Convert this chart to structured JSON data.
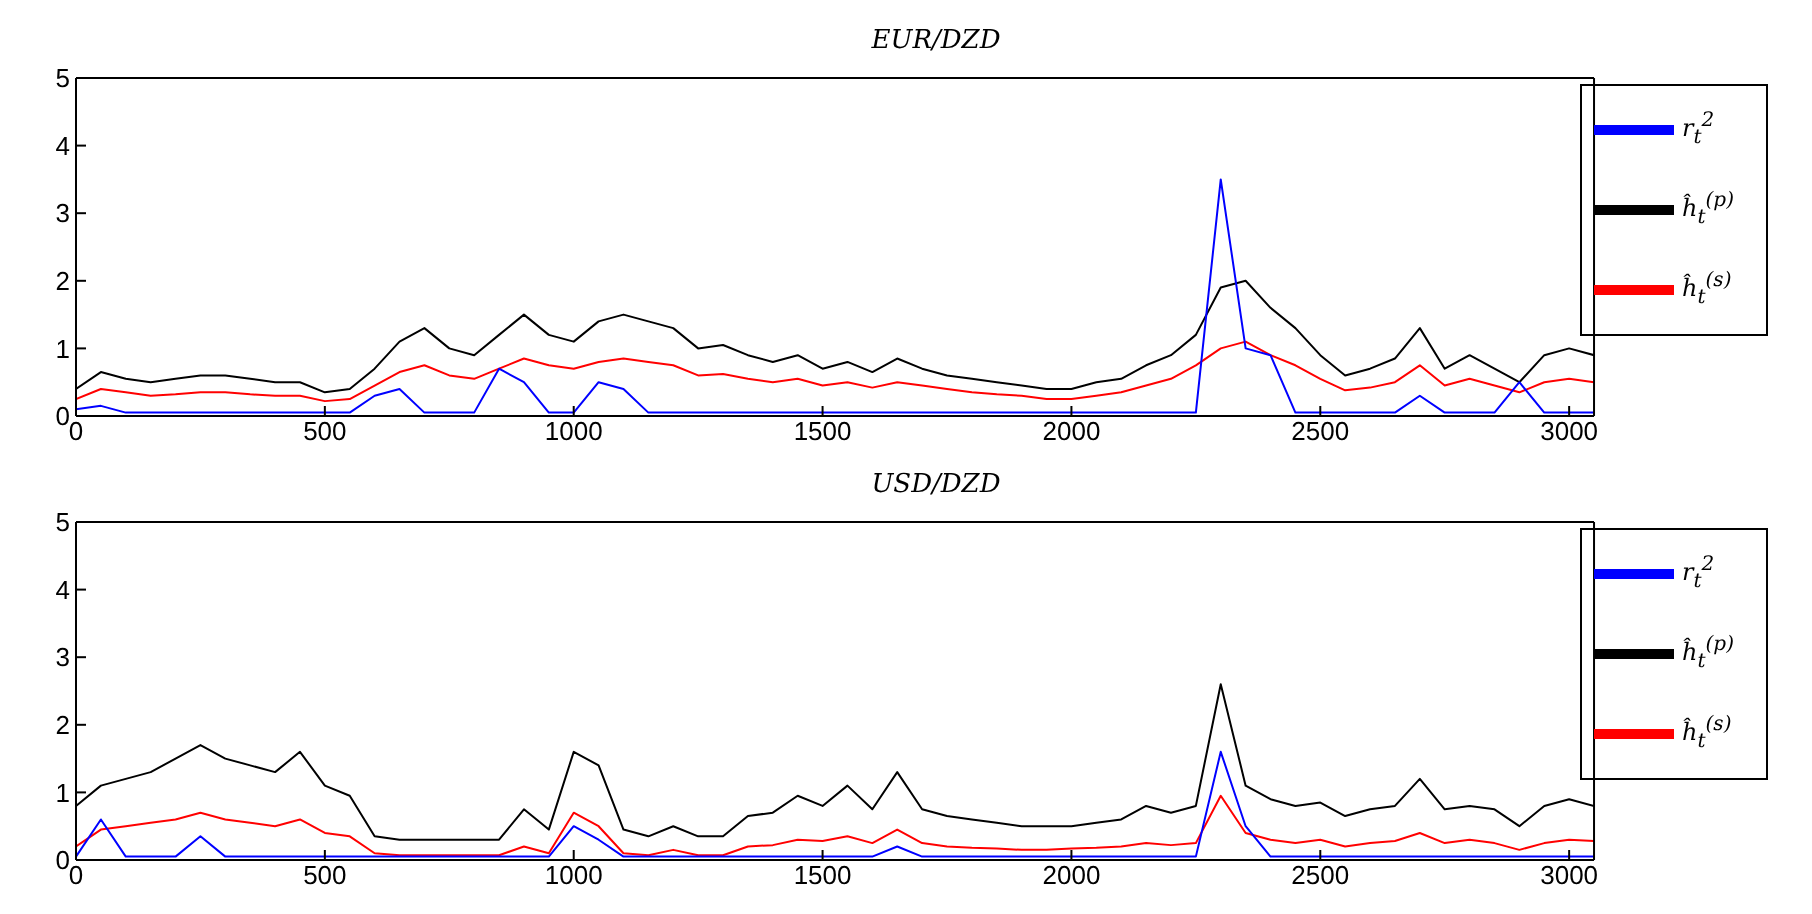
{
  "chart_data": [
    {
      "type": "line",
      "title": "EUR/DZD",
      "xlim": [
        0,
        3050
      ],
      "xticks": [
        0,
        500,
        1000,
        1500,
        2000,
        2500,
        3000
      ],
      "ylim": [
        0,
        5
      ],
      "yticks": [
        0,
        1,
        2,
        3,
        4,
        5
      ],
      "legend": "top right",
      "x": [
        0,
        50,
        100,
        150,
        200,
        250,
        300,
        350,
        400,
        450,
        500,
        550,
        600,
        650,
        700,
        750,
        800,
        850,
        900,
        950,
        1000,
        1050,
        1100,
        1150,
        1200,
        1250,
        1300,
        1350,
        1400,
        1450,
        1500,
        1550,
        1600,
        1650,
        1700,
        1750,
        1800,
        1850,
        1900,
        1950,
        2000,
        2050,
        2100,
        2150,
        2200,
        2250,
        2300,
        2350,
        2400,
        2450,
        2500,
        2550,
        2600,
        2650,
        2700,
        2750,
        2800,
        2850,
        2900,
        2950,
        3000,
        3050
      ],
      "series": [
        {
          "name": "ĥ$_{t}$$^{(p)}$",
          "color": "#000000",
          "values": [
            0.4,
            0.65,
            0.55,
            0.5,
            0.55,
            0.6,
            0.6,
            0.55,
            0.5,
            0.5,
            0.35,
            0.4,
            0.7,
            1.1,
            1.3,
            1.0,
            0.9,
            1.2,
            1.5,
            1.2,
            1.1,
            1.4,
            1.5,
            1.4,
            1.3,
            1.0,
            1.05,
            0.9,
            0.8,
            0.9,
            0.7,
            0.8,
            0.65,
            0.85,
            0.7,
            0.6,
            0.55,
            0.5,
            0.45,
            0.4,
            0.4,
            0.5,
            0.55,
            0.75,
            0.9,
            1.2,
            1.9,
            2.0,
            1.6,
            1.3,
            0.9,
            0.6,
            0.7,
            0.85,
            1.3,
            0.7,
            0.9,
            0.7,
            0.5,
            0.9,
            1.0,
            0.9
          ]
        },
        {
          "name": "ĥ$_{t}$$^{(s)}$",
          "color": "#ff0000",
          "values": [
            0.25,
            0.4,
            0.35,
            0.3,
            0.32,
            0.35,
            0.35,
            0.32,
            0.3,
            0.3,
            0.22,
            0.25,
            0.45,
            0.65,
            0.75,
            0.6,
            0.55,
            0.7,
            0.85,
            0.75,
            0.7,
            0.8,
            0.85,
            0.8,
            0.75,
            0.6,
            0.62,
            0.55,
            0.5,
            0.55,
            0.45,
            0.5,
            0.42,
            0.5,
            0.45,
            0.4,
            0.35,
            0.32,
            0.3,
            0.25,
            0.25,
            0.3,
            0.35,
            0.45,
            0.55,
            0.75,
            1.0,
            1.1,
            0.9,
            0.75,
            0.55,
            0.38,
            0.42,
            0.5,
            0.75,
            0.45,
            0.55,
            0.45,
            0.35,
            0.5,
            0.55,
            0.5
          ]
        },
        {
          "name": "r$_{t}$$^{2}$",
          "color": "#0000ff",
          "values": [
            0.1,
            0.15,
            0.05,
            0.05,
            0.05,
            0.05,
            0.05,
            0.05,
            0.05,
            0.05,
            0.05,
            0.05,
            0.3,
            0.4,
            0.05,
            0.05,
            0.05,
            0.7,
            0.5,
            0.05,
            0.05,
            0.5,
            0.4,
            0.05,
            0.05,
            0.05,
            0.05,
            0.05,
            0.05,
            0.05,
            0.05,
            0.05,
            0.05,
            0.05,
            0.05,
            0.05,
            0.05,
            0.05,
            0.05,
            0.05,
            0.05,
            0.05,
            0.05,
            0.05,
            0.05,
            0.05,
            3.5,
            1.0,
            0.9,
            0.05,
            0.05,
            0.05,
            0.05,
            0.05,
            0.3,
            0.05,
            0.05,
            0.05,
            0.5,
            0.05,
            0.05,
            0.05
          ]
        }
      ]
    },
    {
      "type": "line",
      "title": "USD/DZD",
      "xlim": [
        0,
        3050
      ],
      "xticks": [
        0,
        500,
        1000,
        1500,
        2000,
        2500,
        3000
      ],
      "ylim": [
        0,
        5
      ],
      "yticks": [
        0,
        1,
        2,
        3,
        4,
        5
      ],
      "legend": "top right",
      "x": [
        0,
        50,
        100,
        150,
        200,
        250,
        300,
        350,
        400,
        450,
        500,
        550,
        600,
        650,
        700,
        750,
        800,
        850,
        900,
        950,
        1000,
        1050,
        1100,
        1150,
        1200,
        1250,
        1300,
        1350,
        1400,
        1450,
        1500,
        1550,
        1600,
        1650,
        1700,
        1750,
        1800,
        1850,
        1900,
        1950,
        2000,
        2050,
        2100,
        2150,
        2200,
        2250,
        2300,
        2350,
        2400,
        2450,
        2500,
        2550,
        2600,
        2650,
        2700,
        2750,
        2800,
        2850,
        2900,
        2950,
        3000,
        3050
      ],
      "series": [
        {
          "name": "ĥ$_{t}$$^{(p)}$",
          "color": "#000000",
          "values": [
            0.8,
            1.1,
            1.2,
            1.3,
            1.5,
            1.7,
            1.5,
            1.4,
            1.3,
            1.6,
            1.1,
            0.95,
            0.35,
            0.3,
            0.3,
            0.3,
            0.3,
            0.3,
            0.75,
            0.45,
            1.6,
            1.4,
            0.45,
            0.35,
            0.5,
            0.35,
            0.35,
            0.65,
            0.7,
            0.95,
            0.8,
            1.1,
            0.75,
            1.3,
            0.75,
            0.65,
            0.6,
            0.55,
            0.5,
            0.5,
            0.5,
            0.55,
            0.6,
            0.8,
            0.7,
            0.8,
            2.6,
            1.1,
            0.9,
            0.8,
            0.85,
            0.65,
            0.75,
            0.8,
            1.2,
            0.75,
            0.8,
            0.75,
            0.5,
            0.8,
            0.9,
            0.8
          ]
        },
        {
          "name": "ĥ$_{t}$$^{(s)}$",
          "color": "#ff0000",
          "values": [
            0.2,
            0.45,
            0.5,
            0.55,
            0.6,
            0.7,
            0.6,
            0.55,
            0.5,
            0.6,
            0.4,
            0.35,
            0.1,
            0.07,
            0.07,
            0.07,
            0.07,
            0.07,
            0.2,
            0.1,
            0.7,
            0.5,
            0.1,
            0.07,
            0.15,
            0.07,
            0.07,
            0.2,
            0.22,
            0.3,
            0.28,
            0.35,
            0.25,
            0.45,
            0.25,
            0.2,
            0.18,
            0.17,
            0.15,
            0.15,
            0.17,
            0.18,
            0.2,
            0.25,
            0.22,
            0.25,
            0.95,
            0.4,
            0.3,
            0.25,
            0.3,
            0.2,
            0.25,
            0.28,
            0.4,
            0.25,
            0.3,
            0.25,
            0.15,
            0.25,
            0.3,
            0.28
          ]
        },
        {
          "name": "r$_{t}$$^{2}$",
          "color": "#0000ff",
          "values": [
            0.05,
            0.6,
            0.05,
            0.05,
            0.05,
            0.35,
            0.05,
            0.05,
            0.05,
            0.05,
            0.05,
            0.05,
            0.05,
            0.05,
            0.05,
            0.05,
            0.05,
            0.05,
            0.05,
            0.05,
            0.5,
            0.3,
            0.05,
            0.05,
            0.05,
            0.05,
            0.05,
            0.05,
            0.05,
            0.05,
            0.05,
            0.05,
            0.05,
            0.2,
            0.05,
            0.05,
            0.05,
            0.05,
            0.05,
            0.05,
            0.05,
            0.05,
            0.05,
            0.05,
            0.05,
            0.05,
            1.6,
            0.5,
            0.05,
            0.05,
            0.05,
            0.05,
            0.05,
            0.05,
            0.05,
            0.05,
            0.05,
            0.05,
            0.05,
            0.05,
            0.05,
            0.05
          ]
        }
      ]
    }
  ]
}
